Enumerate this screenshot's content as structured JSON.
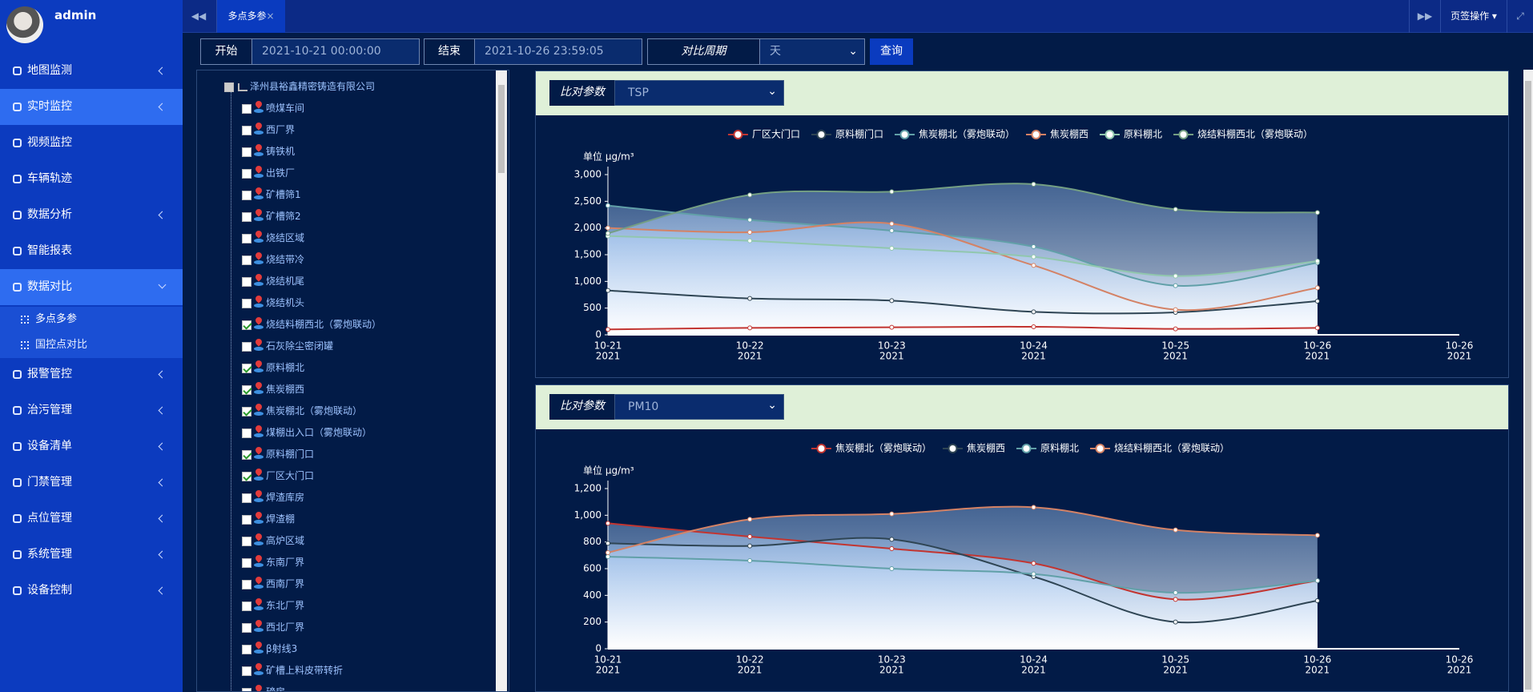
{
  "sidebar": {
    "user": "admin",
    "menu": [
      {
        "label": "地图监测",
        "submenu": true
      },
      {
        "label": "实时监控",
        "submenu": true,
        "highlighted": true
      },
      {
        "label": "视频监控"
      },
      {
        "label": "车辆轨迹"
      },
      {
        "label": "数据分析",
        "submenu": true
      },
      {
        "label": "智能报表"
      },
      {
        "label": "数据对比",
        "submenu": true,
        "highlighted": true,
        "expanded": true,
        "children": [
          {
            "label": "多点多参",
            "active": true
          },
          {
            "label": "国控点对比"
          }
        ]
      },
      {
        "label": "报警管控",
        "submenu": true
      },
      {
        "label": "治污管理",
        "submenu": true
      },
      {
        "label": "设备清单",
        "submenu": true
      },
      {
        "label": "门禁管理",
        "submenu": true
      },
      {
        "label": "点位管理",
        "submenu": true
      },
      {
        "label": "系统管理",
        "submenu": true
      },
      {
        "label": "设备控制",
        "submenu": true
      }
    ]
  },
  "tabs": {
    "active": "多点多参",
    "actions": "页签操作"
  },
  "query": {
    "start_label": "开始",
    "start": "2021-10-21 00:00:00",
    "end_label": "结束",
    "end": "2021-10-26 23:59:05",
    "period_label": "对比周期",
    "period": "天",
    "button": "查询"
  },
  "tree": {
    "root": "泽州县裕鑫精密铸造有限公司",
    "items": [
      {
        "label": "喷煤车间",
        "checked": false
      },
      {
        "label": "西厂界",
        "checked": false
      },
      {
        "label": "铸铁机",
        "checked": false
      },
      {
        "label": "出铁厂",
        "checked": false
      },
      {
        "label": "矿槽筛1",
        "checked": false
      },
      {
        "label": "矿槽筛2",
        "checked": false
      },
      {
        "label": "烧结区域",
        "checked": false
      },
      {
        "label": "烧结带冷",
        "checked": false
      },
      {
        "label": "烧结机尾",
        "checked": false
      },
      {
        "label": "烧结机头",
        "checked": false
      },
      {
        "label": "烧结料棚西北（雾炮联动）",
        "checked": true
      },
      {
        "label": "石灰除尘密闭罐",
        "checked": false
      },
      {
        "label": "原料棚北",
        "checked": true
      },
      {
        "label": "焦炭棚西",
        "checked": true
      },
      {
        "label": "焦炭棚北（雾炮联动）",
        "checked": true
      },
      {
        "label": "煤棚出入口（雾炮联动）",
        "checked": false
      },
      {
        "label": "原料棚门口",
        "checked": true
      },
      {
        "label": "厂区大门口",
        "checked": true
      },
      {
        "label": "焊渣库房",
        "checked": false
      },
      {
        "label": "焊渣棚",
        "checked": false
      },
      {
        "label": "高炉区域",
        "checked": false
      },
      {
        "label": "东南厂界",
        "checked": false
      },
      {
        "label": "西南厂界",
        "checked": false
      },
      {
        "label": "东北厂界",
        "checked": false
      },
      {
        "label": "西北厂界",
        "checked": false
      },
      {
        "label": "β射线3",
        "checked": false
      },
      {
        "label": "矿槽上料皮带转折",
        "checked": false
      },
      {
        "label": "磅房",
        "checked": false
      }
    ]
  },
  "chart_data": [
    {
      "type": "line",
      "param_label": "比对参数",
      "param": "TSP",
      "unit": "单位 μg/m³",
      "area": true,
      "x_ticks": [
        {
          "date": "10-21",
          "year": "2021"
        },
        {
          "date": "10-22",
          "year": "2021"
        },
        {
          "date": "10-23",
          "year": "2021"
        },
        {
          "date": "10-24",
          "year": "2021"
        },
        {
          "date": "10-25",
          "year": "2021"
        },
        {
          "date": "10-26",
          "year": "2021"
        },
        {
          "date": "10-26",
          "year": "2021"
        }
      ],
      "ylim": [
        0,
        3000
      ],
      "yticks": [
        0,
        500,
        {
          "value": 1000,
          "label": "1,000"
        },
        {
          "value": 1500,
          "label": "1,500"
        },
        {
          "value": 2000,
          "label": "2,000"
        },
        {
          "value": 2500,
          "label": "2,500"
        },
        {
          "value": 3000,
          "label": "3,000"
        }
      ],
      "series": [
        {
          "name": "厂区大门口",
          "color": "#c23531",
          "values": [
            100,
            130,
            140,
            150,
            110,
            130
          ]
        },
        {
          "name": "原料棚门口",
          "color": "#2f4554",
          "values": [
            830,
            680,
            640,
            430,
            420,
            630
          ]
        },
        {
          "name": "焦炭棚北（雾炮联动）",
          "color": "#61a0a8",
          "values": [
            2420,
            2150,
            1950,
            1650,
            920,
            1350
          ]
        },
        {
          "name": "焦炭棚西",
          "color": "#d48265",
          "values": [
            2000,
            1920,
            2080,
            1300,
            470,
            880
          ]
        },
        {
          "name": "原料棚北",
          "color": "#91c7ae",
          "values": [
            1850,
            1760,
            1620,
            1460,
            1100,
            1380
          ]
        },
        {
          "name": "烧结料棚西北（雾炮联动）",
          "color": "#749f83",
          "values": [
            1900,
            2620,
            2680,
            2820,
            2350,
            2290
          ]
        }
      ]
    },
    {
      "type": "line",
      "param_label": "比对参数",
      "param": "PM10",
      "unit": "单位 μg/m³",
      "area": true,
      "x_ticks": [
        {
          "date": "10-21",
          "year": "2021"
        },
        {
          "date": "10-22",
          "year": "2021"
        },
        {
          "date": "10-23",
          "year": "2021"
        },
        {
          "date": "10-24",
          "year": "2021"
        },
        {
          "date": "10-25",
          "year": "2021"
        },
        {
          "date": "10-26",
          "year": "2021"
        },
        {
          "date": "10-26",
          "year": "2021"
        }
      ],
      "ylim": [
        0,
        1200
      ],
      "yticks": [
        0,
        200,
        400,
        600,
        800,
        {
          "value": 1000,
          "label": "1,000"
        },
        {
          "value": 1200,
          "label": "1,200"
        }
      ],
      "series": [
        {
          "name": "焦炭棚北（雾炮联动）",
          "color": "#c23531",
          "values": [
            940,
            840,
            750,
            640,
            370,
            510
          ]
        },
        {
          "name": "焦炭棚西",
          "color": "#2f4554",
          "values": [
            790,
            770,
            820,
            540,
            200,
            360
          ]
        },
        {
          "name": "原料棚北",
          "color": "#61a0a8",
          "values": [
            690,
            660,
            600,
            560,
            420,
            510
          ]
        },
        {
          "name": "烧结料棚西北（雾炮联动）",
          "color": "#d48265",
          "values": [
            720,
            970,
            1010,
            1060,
            890,
            850
          ]
        }
      ]
    }
  ]
}
